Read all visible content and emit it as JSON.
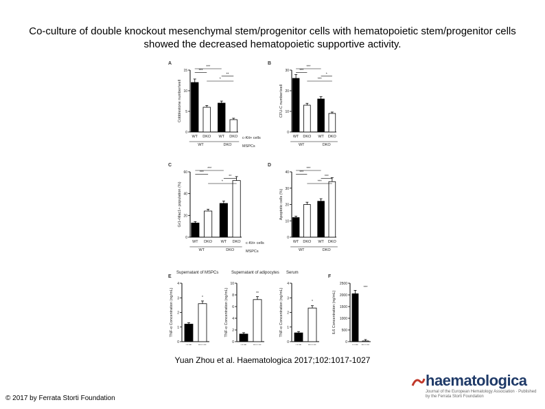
{
  "slide": {
    "title": "Co-culture of double knockout mesenchymal stem/progenitor cells with hematopoietic stem/progenitor cells showed the decreased hematopoietic supportive activity.",
    "citation": "Yuan Zhou et al. Haematologica 2017;102:1017-1027",
    "copyright": "© 2017 by Ferrata Storti Foundation",
    "logo": {
      "wordmark": "haematologica",
      "tagline": "Journal of the European Hematology Association · Published by the Ferrata Storti Foundation"
    }
  },
  "colors": {
    "title_text": "#000000",
    "logo_blue": "#1f3a68",
    "logo_red": "#c0392b",
    "bar_black": "#000000",
    "bar_white": "#ffffff"
  },
  "chart_data": [
    {
      "panel": "A",
      "type": "bar",
      "ylabel": "Cobblestone number/well",
      "ylim": [
        0,
        15
      ],
      "yticks": [
        0,
        5,
        10,
        15
      ],
      "categories": [
        "WT",
        "DKO",
        "WT",
        "DKO"
      ],
      "values": [
        12,
        6,
        7,
        3
      ],
      "row_labels": [
        "c-Kit+ cells",
        "MSPCs"
      ],
      "groups": [
        "WT",
        "DKO"
      ],
      "significance": [
        "***",
        "***",
        "**",
        "*"
      ]
    },
    {
      "panel": "B",
      "type": "bar",
      "ylabel": "CFU-C number/well",
      "ylim": [
        0,
        30
      ],
      "yticks": [
        0,
        10,
        20,
        30
      ],
      "categories": [
        "WT",
        "DKO",
        "WT",
        "DKO"
      ],
      "values": [
        26,
        13,
        16,
        9
      ],
      "groups": [
        "WT",
        "DKO"
      ],
      "significance": [
        "***",
        "***",
        "*",
        "***"
      ]
    },
    {
      "panel": "C",
      "type": "bar",
      "ylabel": "Gr1+Mac1+ population (%)",
      "ylim": [
        0,
        60
      ],
      "yticks": [
        0,
        20,
        40,
        60
      ],
      "categories": [
        "WT",
        "DKO",
        "WT",
        "DKO"
      ],
      "values": [
        13,
        24,
        31,
        52
      ],
      "row_labels": [
        "c-Kit+ cells",
        "MSPCs"
      ],
      "groups": [
        "WT",
        "DKO"
      ],
      "significance": [
        "***",
        "***",
        "**",
        "*"
      ]
    },
    {
      "panel": "D",
      "type": "bar",
      "ylabel": "Apoptotic cells (%)",
      "ylim": [
        0,
        40
      ],
      "yticks": [
        0,
        10,
        20,
        30,
        40
      ],
      "categories": [
        "WT",
        "DKO",
        "WT",
        "DKO"
      ],
      "values": [
        12,
        20,
        22,
        34
      ],
      "groups": [
        "WT",
        "DKO"
      ],
      "significance": [
        "***",
        "***",
        "***",
        "***"
      ]
    },
    {
      "panel": "E",
      "type": "bar",
      "subtitle": "Supernatant of MSPCs",
      "ylabel": "TNF-α Concentration (ng/mL)",
      "ylim": [
        0,
        4
      ],
      "yticks": [
        0,
        1,
        2,
        3,
        4
      ],
      "categories": [
        "WT",
        "DKO"
      ],
      "values": [
        1.2,
        2.6
      ],
      "significance": [
        "*"
      ]
    },
    {
      "panel": "E2",
      "type": "bar",
      "subtitle": "Supernatant of adipocytes",
      "ylabel": "TNF-α Concentration (ng/mL)",
      "ylim": [
        0,
        10
      ],
      "yticks": [
        0,
        2,
        4,
        6,
        8,
        10
      ],
      "categories": [
        "WT",
        "DKO"
      ],
      "values": [
        1.3,
        7.2
      ],
      "significance": [
        "**"
      ]
    },
    {
      "panel": "E3",
      "type": "bar",
      "subtitle": "Serum",
      "ylabel": "TNF-α Concentration (ng/mL)",
      "ylim": [
        0,
        4
      ],
      "yticks": [
        0,
        1,
        2,
        3,
        4
      ],
      "categories": [
        "WT",
        "DKO"
      ],
      "values": [
        0.6,
        2.3
      ],
      "significance": [
        "*"
      ]
    },
    {
      "panel": "F",
      "type": "bar",
      "ylabel": "IL6 Concentration (ng/mL)",
      "ylim": [
        0,
        2500
      ],
      "yticks": [
        0,
        500,
        1000,
        1500,
        2000,
        2500
      ],
      "categories": [
        "WT",
        "DKO"
      ],
      "values": [
        2050,
        30
      ],
      "significance": [
        "***"
      ]
    }
  ]
}
